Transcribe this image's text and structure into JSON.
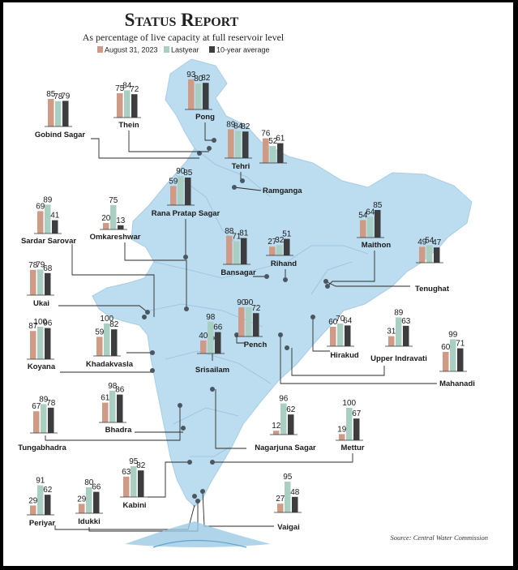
{
  "chart_data": {
    "type": "bar",
    "title": "Status Report",
    "subtitle": "As percentage of live capacity at full reservoir level",
    "series": [
      {
        "name": "August 31, 2023",
        "color": "#cf9a86"
      },
      {
        "name": "Last year",
        "color": "#a9cfc3"
      },
      {
        "name": "10-year average",
        "color": "#3d3d3f"
      }
    ],
    "reservoirs": [
      {
        "name": "Gobind Sagar",
        "values": [
          85,
          78,
          79
        ]
      },
      {
        "name": "Thein",
        "values": [
          75,
          84,
          72
        ]
      },
      {
        "name": "Pong",
        "values": [
          93,
          80,
          82
        ]
      },
      {
        "name": "Tehri",
        "values": [
          89,
          84,
          82
        ]
      },
      {
        "name": "Ramganga",
        "values": [
          76,
          52,
          61
        ]
      },
      {
        "name": "Rana Pratap Sagar",
        "values": [
          59,
          90,
          85
        ]
      },
      {
        "name": "Sardar Sarovar",
        "values": [
          69,
          89,
          41
        ]
      },
      {
        "name": "Omkareshwar",
        "values": [
          20,
          75,
          13
        ]
      },
      {
        "name": "Bansagar",
        "values": [
          88,
          71,
          81
        ]
      },
      {
        "name": "Rihand",
        "values": [
          27,
          32,
          51
        ]
      },
      {
        "name": "Maithon",
        "values": [
          54,
          64,
          85
        ]
      },
      {
        "name": "Tenughat",
        "values": [
          49,
          54,
          47
        ]
      },
      {
        "name": "Ukai",
        "values": [
          78,
          79,
          68
        ]
      },
      {
        "name": "Koyana",
        "values": [
          87,
          100,
          96
        ]
      },
      {
        "name": "Khadakvasla",
        "values": [
          59,
          100,
          82
        ]
      },
      {
        "name": "Srisailam",
        "values": [
          40,
          98,
          66
        ]
      },
      {
        "name": "Pench",
        "values": [
          90,
          90,
          72
        ]
      },
      {
        "name": "Hirakud",
        "values": [
          60,
          70,
          64
        ]
      },
      {
        "name": "Upper Indravati",
        "values": [
          31,
          89,
          63
        ]
      },
      {
        "name": "Mahanadi",
        "values": [
          60,
          99,
          71
        ]
      },
      {
        "name": "Tungabhadra",
        "values": [
          67,
          89,
          78
        ]
      },
      {
        "name": "Bhadra",
        "values": [
          61,
          98,
          86
        ]
      },
      {
        "name": "Nagarjuna Sagar",
        "values": [
          12,
          96,
          62
        ]
      },
      {
        "name": "Mettur",
        "values": [
          19,
          100,
          67
        ]
      },
      {
        "name": "Kabini",
        "values": [
          63,
          95,
          82
        ]
      },
      {
        "name": "Periyar",
        "values": [
          29,
          91,
          62
        ]
      },
      {
        "name": "Idukki",
        "values": [
          29,
          80,
          66
        ]
      },
      {
        "name": "Vaigai",
        "values": [
          27,
          95,
          48
        ]
      }
    ],
    "legend": [
      "August 31, 2023",
      "Lastyear",
      "10-year average"
    ],
    "source": "Source: Central Water Commission"
  }
}
